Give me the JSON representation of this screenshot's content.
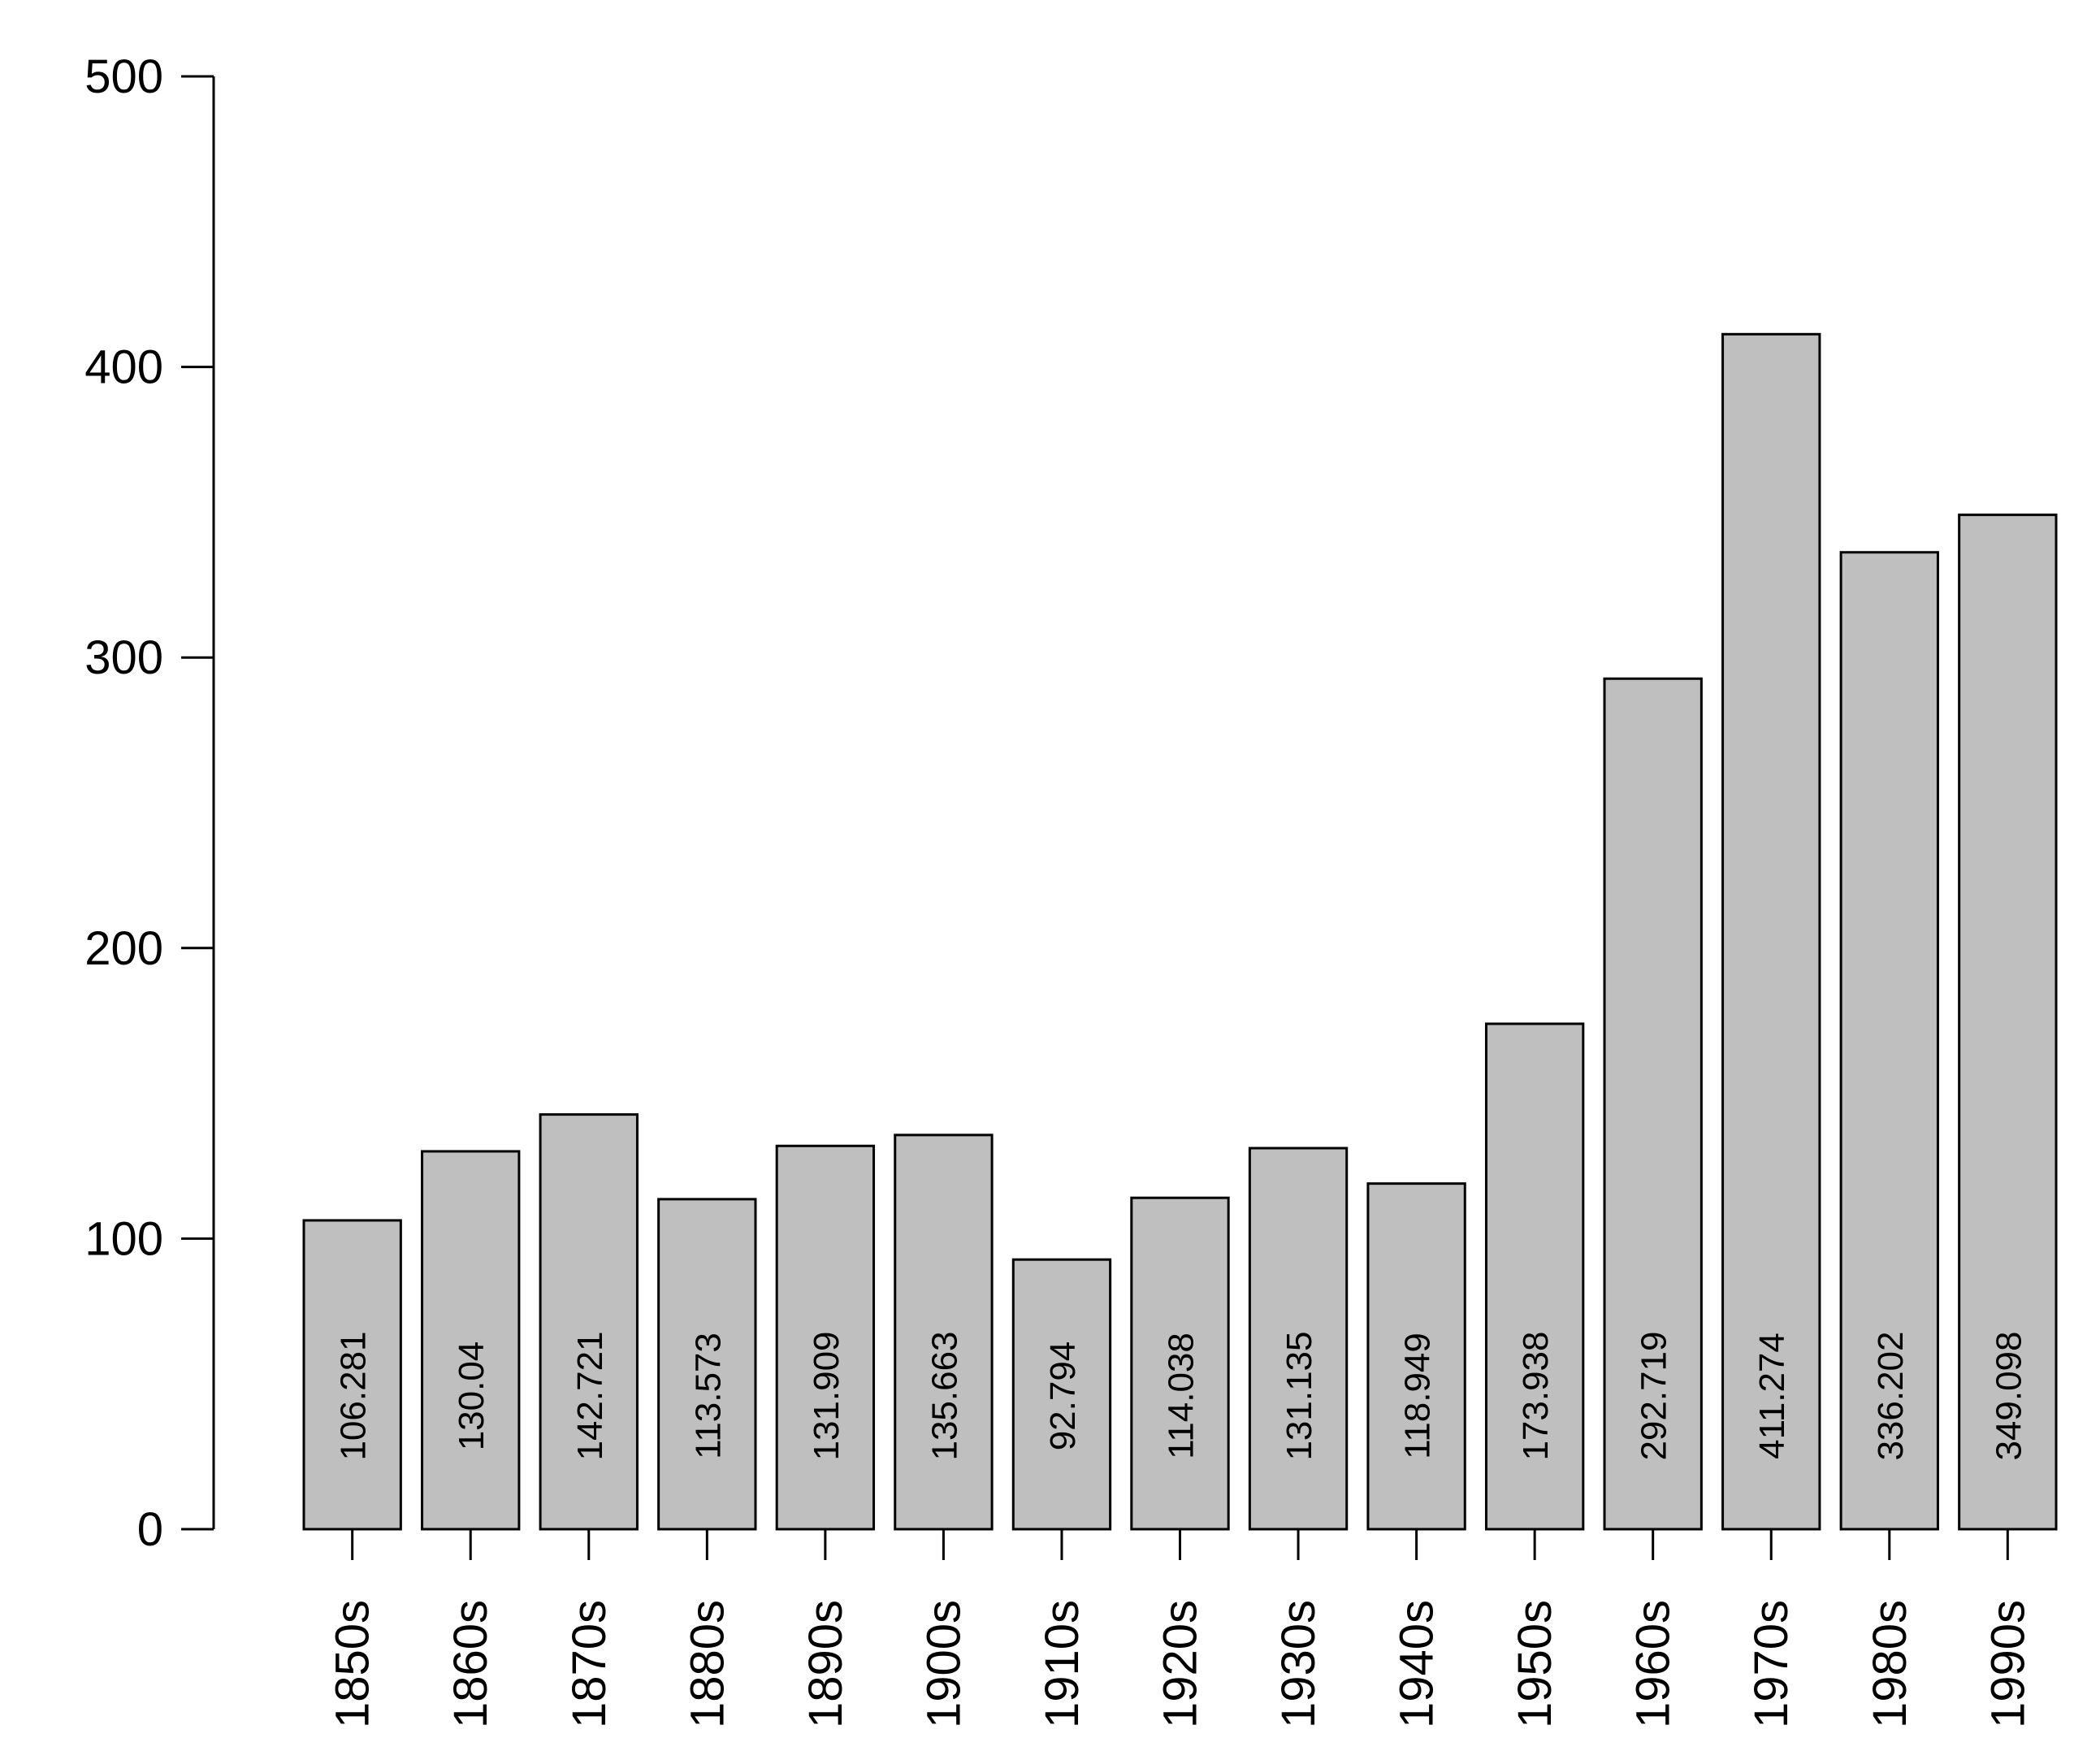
{
  "chart_data": {
    "type": "bar",
    "title": "",
    "xlabel": "",
    "ylabel": "",
    "categories": [
      "1850s",
      "1860s",
      "1870s",
      "1880s",
      "1890s",
      "1900s",
      "1910s",
      "1920s",
      "1930s",
      "1940s",
      "1950s",
      "1960s",
      "1970s",
      "1980s",
      "1990s"
    ],
    "values": [
      106.281,
      130.04,
      142.721,
      113.573,
      131.909,
      135.663,
      92.794,
      114.038,
      131.135,
      118.949,
      173.938,
      292.719,
      411.274,
      336.202,
      349.098
    ],
    "value_labels": [
      "106.281",
      "130.04",
      "142.721",
      "113.573",
      "131.909",
      "135.663",
      "92.794",
      "114.038",
      "131.135",
      "118.949",
      "173.938",
      "292.719",
      "411.274",
      "336.202",
      "349.098"
    ],
    "ylim": [
      0,
      500
    ],
    "yticks": [
      0,
      100,
      200,
      300,
      400,
      500
    ],
    "ytick_labels": [
      "0",
      "100",
      "200",
      "300",
      "400",
      "500"
    ],
    "grid": false,
    "legend": "none",
    "bar_color": "#bfbfbf",
    "bar_edge_color": "#000000"
  }
}
